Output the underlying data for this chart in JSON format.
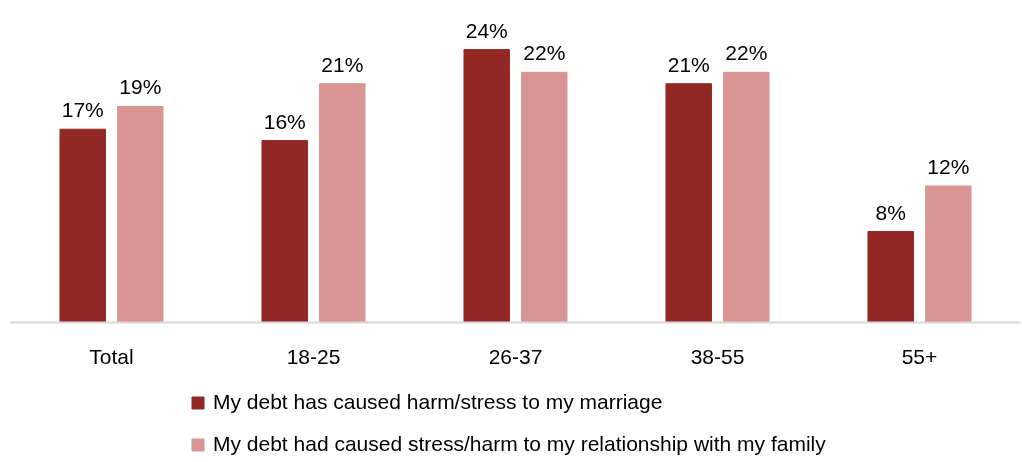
{
  "chart_data": {
    "type": "bar",
    "categories": [
      "Total",
      "18-25",
      "26-37",
      "38-55",
      "55+"
    ],
    "series": [
      {
        "name": "My debt has caused harm/stress to my marriage",
        "color": "#922723",
        "values": [
          17,
          16,
          24,
          21,
          8
        ],
        "value_labels": [
          "17%",
          "16%",
          "24%",
          "21%",
          "8%"
        ]
      },
      {
        "name": "My debt had caused stress/harm to my relationship with my family",
        "color": "#d99594",
        "values": [
          19,
          21,
          22,
          22,
          12
        ],
        "value_labels": [
          "19%",
          "21%",
          "22%",
          "22%",
          "12%"
        ]
      }
    ],
    "legend": "bottom",
    "tick_labels": "x"
  }
}
